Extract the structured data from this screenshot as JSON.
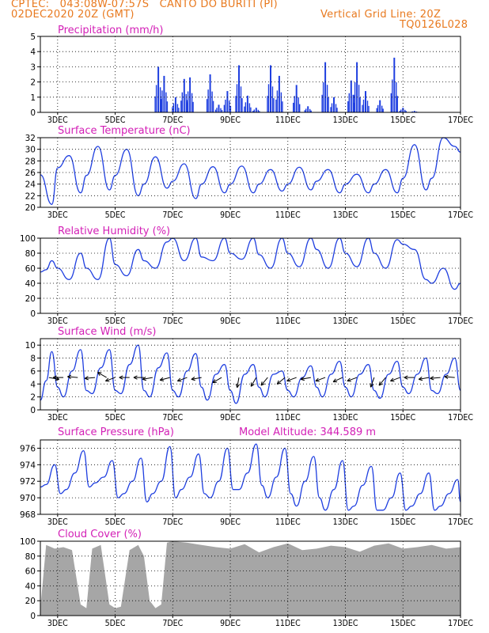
{
  "header": {
    "line1": "CPTEC:   043:08W-07:57S   CANTO DO BURITI (PI)",
    "line2": "02DEC2020 20Z (GMT)",
    "grid_note": "Vertical Grid Line: 20Z",
    "code": "TQ0126L028"
  },
  "colors": {
    "line": "#1f3fe0",
    "bar": "#1f3fe0",
    "cloud": "#a6a6a6",
    "title": "#d31fb6",
    "header": "#e8791e"
  },
  "chart_data": [
    {
      "id": "precip",
      "type": "bar",
      "title": "Precipitation (mm/h)",
      "ylim": [
        0,
        5
      ],
      "yticks": [
        0,
        1,
        2,
        3,
        4,
        5
      ],
      "xlim_days": [
        2.4,
        17.0
      ],
      "xticks": [
        "3DEC",
        "5DEC",
        "7DEC",
        "9DEC",
        "11DEC",
        "13DEC",
        "15DEC",
        "17DEC"
      ],
      "peaks": [
        [
          6.5,
          3.0
        ],
        [
          6.7,
          2.4
        ],
        [
          7.1,
          1.0
        ],
        [
          7.4,
          2.2
        ],
        [
          7.6,
          2.3
        ],
        [
          8.3,
          2.5
        ],
        [
          8.6,
          0.5
        ],
        [
          8.9,
          1.4
        ],
        [
          9.3,
          3.1
        ],
        [
          9.6,
          1.1
        ],
        [
          9.9,
          0.3
        ],
        [
          10.4,
          3.1
        ],
        [
          10.7,
          2.4
        ],
        [
          11.3,
          1.8
        ],
        [
          11.7,
          0.4
        ],
        [
          12.3,
          3.3
        ],
        [
          12.6,
          1.0
        ],
        [
          13.2,
          2.1
        ],
        [
          13.4,
          3.3
        ],
        [
          13.7,
          1.4
        ],
        [
          14.2,
          0.8
        ],
        [
          14.7,
          3.6
        ],
        [
          15.0,
          0.3
        ],
        [
          15.4,
          0.1
        ]
      ]
    },
    {
      "id": "temp",
      "type": "line",
      "title": "Surface Temperature (nC)",
      "ylim": [
        20,
        32
      ],
      "yticks": [
        20,
        22,
        24,
        26,
        28,
        30,
        32
      ],
      "xlim_days": [
        2.4,
        17.0
      ],
      "xticks": [
        "3DEC",
        "5DEC",
        "7DEC",
        "9DEC",
        "11DEC",
        "13DEC",
        "15DEC",
        "17DEC"
      ],
      "x": [
        2.4,
        2.8,
        3.0,
        3.4,
        3.8,
        4.0,
        4.4,
        4.8,
        5.0,
        5.4,
        5.8,
        6.0,
        6.4,
        6.8,
        7.0,
        7.4,
        7.8,
        8.0,
        8.4,
        8.8,
        9.0,
        9.4,
        9.8,
        10.0,
        10.4,
        10.8,
        11.0,
        11.4,
        11.8,
        12.0,
        12.4,
        12.8,
        13.0,
        13.4,
        13.8,
        14.0,
        14.4,
        14.8,
        15.0,
        15.4,
        15.8,
        16.0,
        16.4,
        16.8,
        17.0
      ],
      "values": [
        25.6,
        20.5,
        26.8,
        28.9,
        22.5,
        25.5,
        30.5,
        23.0,
        25.5,
        30.0,
        22.0,
        24.0,
        28.7,
        23.3,
        24.5,
        27.5,
        21.5,
        24.0,
        27.0,
        22.5,
        24.0,
        27.1,
        22.5,
        24.0,
        26.5,
        22.8,
        24.0,
        26.9,
        23.0,
        24.5,
        26.5,
        22.5,
        24.0,
        25.7,
        22.5,
        24.0,
        26.5,
        22.5,
        25.0,
        30.8,
        23.0,
        25.0,
        32.0,
        30.5,
        29.5
      ]
    },
    {
      "id": "rh",
      "type": "line",
      "title": "Relative Humidity (%)",
      "ylim": [
        0,
        100
      ],
      "yticks": [
        0,
        20,
        40,
        60,
        80,
        100
      ],
      "xlim_days": [
        2.4,
        17.0
      ],
      "xticks": [
        "3DEC",
        "5DEC",
        "7DEC",
        "9DEC",
        "11DEC",
        "13DEC",
        "15DEC",
        "17DEC"
      ],
      "x": [
        2.4,
        2.6,
        2.8,
        3.0,
        3.4,
        3.8,
        4.0,
        4.4,
        4.8,
        5.0,
        5.4,
        5.8,
        6.0,
        6.4,
        6.8,
        7.0,
        7.4,
        7.8,
        8.0,
        8.4,
        8.8,
        9.0,
        9.4,
        9.8,
        10.0,
        10.4,
        10.8,
        11.0,
        11.4,
        11.8,
        12.0,
        12.4,
        12.8,
        13.0,
        13.4,
        13.8,
        14.0,
        14.4,
        14.8,
        15.0,
        15.4,
        15.8,
        16.0,
        16.4,
        16.8,
        17.0
      ],
      "values": [
        55,
        58,
        70,
        60,
        45,
        80,
        60,
        45,
        100,
        65,
        50,
        85,
        70,
        60,
        95,
        100,
        70,
        100,
        75,
        70,
        100,
        80,
        72,
        100,
        78,
        60,
        100,
        80,
        62,
        100,
        85,
        60,
        100,
        80,
        62,
        100,
        80,
        60,
        98,
        92,
        85,
        45,
        40,
        60,
        32,
        40
      ]
    },
    {
      "id": "wind",
      "type": "line",
      "title": "Surface Wind (m/s)",
      "ylim": [
        0,
        11
      ],
      "yticks": [
        0,
        2,
        4,
        6,
        8,
        10
      ],
      "xlim_days": [
        2.4,
        17.0
      ],
      "xticks": [
        "3DEC",
        "5DEC",
        "7DEC",
        "9DEC",
        "11DEC",
        "13DEC",
        "15DEC",
        "17DEC"
      ],
      "x": [
        2.4,
        2.6,
        2.8,
        3.0,
        3.2,
        3.5,
        3.8,
        4.0,
        4.2,
        4.5,
        4.8,
        5.0,
        5.2,
        5.5,
        5.8,
        6.0,
        6.2,
        6.5,
        6.8,
        7.0,
        7.2,
        7.5,
        7.8,
        8.0,
        8.2,
        8.5,
        8.8,
        9.0,
        9.2,
        9.5,
        9.8,
        10.0,
        10.2,
        10.5,
        10.8,
        11.0,
        11.2,
        11.5,
        11.8,
        12.0,
        12.2,
        12.5,
        12.8,
        13.0,
        13.2,
        13.5,
        13.8,
        14.0,
        14.2,
        14.5,
        14.8,
        15.0,
        15.2,
        15.5,
        15.8,
        16.0,
        16.2,
        16.5,
        16.8,
        17.0
      ],
      "values": [
        1.5,
        4.5,
        9.0,
        3.5,
        2.0,
        6.0,
        9.3,
        3.0,
        2.5,
        6.5,
        9.3,
        3.0,
        2.5,
        7.0,
        10.0,
        3.0,
        2.0,
        6.5,
        8.8,
        3.0,
        2.0,
        6.0,
        8.7,
        3.5,
        1.5,
        5.5,
        7.0,
        3.0,
        1.0,
        5.5,
        7.0,
        3.5,
        2.0,
        5.5,
        6.0,
        3.0,
        2.0,
        5.0,
        6.8,
        3.5,
        2.0,
        5.5,
        7.5,
        3.5,
        2.0,
        5.5,
        7.0,
        3.0,
        1.8,
        5.5,
        7.5,
        3.5,
        2.5,
        5.5,
        8.0,
        3.0,
        2.5,
        5.5,
        8.0,
        3.0
      ],
      "arrows": [
        [
          2.7,
          -10
        ],
        [
          3.2,
          180
        ],
        [
          3.7,
          175
        ],
        [
          4.3,
          185
        ],
        [
          4.7,
          150
        ],
        [
          5.0,
          200
        ],
        [
          5.5,
          180
        ],
        [
          6.0,
          180
        ],
        [
          6.3,
          190
        ],
        [
          6.9,
          195
        ],
        [
          7.5,
          200
        ],
        [
          8.0,
          190
        ],
        [
          8.7,
          210
        ],
        [
          9.3,
          260
        ],
        [
          9.9,
          240
        ],
        [
          10.3,
          230
        ],
        [
          10.9,
          220
        ],
        [
          11.3,
          200
        ],
        [
          11.8,
          190
        ],
        [
          12.3,
          200
        ],
        [
          12.9,
          205
        ],
        [
          13.4,
          200
        ],
        [
          14.0,
          250
        ],
        [
          14.4,
          230
        ],
        [
          14.9,
          200
        ],
        [
          15.4,
          180
        ],
        [
          15.9,
          190
        ],
        [
          16.3,
          185
        ],
        [
          16.8,
          175
        ]
      ]
    },
    {
      "id": "pressure",
      "type": "line",
      "title": "Surface Pressure (hPa)",
      "subtitle": "Model Altitude: 344.589  m",
      "ylim": [
        968,
        977
      ],
      "yticks": [
        968,
        970,
        972,
        974,
        976
      ],
      "xlim_days": [
        2.4,
        17.0
      ],
      "xticks": [
        "3DEC",
        "5DEC",
        "7DEC",
        "9DEC",
        "11DEC",
        "13DEC",
        "15DEC",
        "17DEC"
      ],
      "x": [
        2.4,
        2.6,
        2.9,
        3.1,
        3.3,
        3.6,
        3.9,
        4.1,
        4.3,
        4.6,
        4.9,
        5.1,
        5.3,
        5.6,
        5.9,
        6.1,
        6.3,
        6.6,
        6.9,
        7.1,
        7.3,
        7.6,
        7.9,
        8.1,
        8.3,
        8.6,
        8.9,
        9.1,
        9.3,
        9.6,
        9.9,
        10.1,
        10.3,
        10.6,
        10.9,
        11.1,
        11.3,
        11.6,
        11.9,
        12.1,
        12.3,
        12.6,
        12.9,
        13.1,
        13.3,
        13.6,
        13.9,
        14.1,
        14.3,
        14.6,
        14.9,
        15.1,
        15.3,
        15.6,
        15.9,
        16.1,
        16.3,
        16.6,
        16.9,
        17.0
      ],
      "values": [
        971.3,
        971.6,
        974.0,
        970.5,
        971.0,
        973.0,
        975.7,
        971.3,
        971.8,
        972.5,
        974.5,
        970.0,
        970.5,
        972.0,
        974.8,
        969.5,
        970.5,
        972.0,
        976.2,
        970.0,
        971.0,
        972.5,
        975.3,
        970.5,
        970.0,
        972.0,
        976.0,
        971.0,
        971.0,
        973.0,
        976.5,
        971.5,
        970.0,
        972.5,
        976.0,
        970.5,
        969.0,
        972.0,
        975.0,
        970.0,
        968.5,
        971.0,
        974.5,
        968.5,
        969.0,
        971.5,
        973.8,
        968.5,
        968.5,
        970.0,
        973.0,
        968.5,
        969.0,
        970.5,
        973.0,
        968.5,
        969.0,
        970.5,
        972.2,
        969.5
      ]
    },
    {
      "id": "cloud",
      "type": "area",
      "title": "Cloud Cover (%)",
      "ylim": [
        0,
        100
      ],
      "yticks": [
        0,
        20,
        40,
        60,
        80,
        100
      ],
      "xlim_days": [
        2.4,
        17.0
      ],
      "xticks": [
        "3DEC",
        "5DEC",
        "7DEC",
        "9DEC",
        "11DEC",
        "13DEC",
        "15DEC",
        "17DEC"
      ],
      "x": [
        2.4,
        2.6,
        2.9,
        3.2,
        3.5,
        3.8,
        4.0,
        4.2,
        4.5,
        4.8,
        5.0,
        5.2,
        5.5,
        5.8,
        6.0,
        6.2,
        6.4,
        6.6,
        6.8,
        7.0,
        7.5,
        8.0,
        8.5,
        9.0,
        9.5,
        10.0,
        10.5,
        11.0,
        11.5,
        12.0,
        12.5,
        13.0,
        13.5,
        14.0,
        14.5,
        15.0,
        15.5,
        16.0,
        16.5,
        17.0
      ],
      "values": [
        10,
        95,
        90,
        92,
        88,
        15,
        10,
        90,
        95,
        15,
        10,
        12,
        88,
        95,
        80,
        20,
        10,
        15,
        98,
        100,
        98,
        95,
        92,
        90,
        96,
        85,
        92,
        97,
        88,
        90,
        94,
        92,
        86,
        94,
        97,
        90,
        92,
        95,
        90,
        92
      ]
    }
  ]
}
